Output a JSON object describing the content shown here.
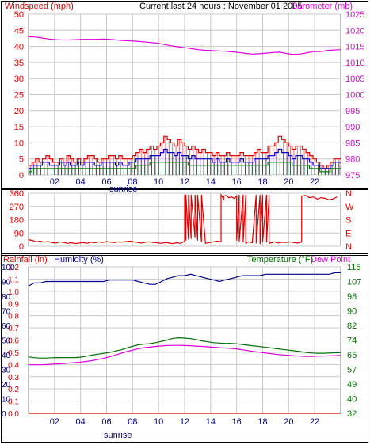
{
  "header": {
    "left_label": "Windspeed (mph)",
    "center_label": "Current last 24 hours : November 01 2005",
    "right_label": "Barometer (mb)"
  },
  "colors": {
    "wind": "#e00000",
    "wind_avg": "#0000c8",
    "wind_low": "#008000",
    "barometer": "#e000e0",
    "direction": "#e00000",
    "rain": "#e00000",
    "humidity": "#00008b",
    "temperature": "#007000",
    "dewpoint": "#e000e0",
    "grid": "#c8c8c8",
    "frame": "#000000"
  },
  "sunrise_label": "sunrise",
  "chart_data": [
    {
      "id": "wind-baro",
      "type": "bar",
      "title": "",
      "x_ticks": [
        "02",
        "04",
        "06",
        "08",
        "10",
        "12",
        "14",
        "16",
        "18",
        "20",
        "22"
      ],
      "xlim": [
        0,
        24
      ],
      "left_axis": {
        "label": "Windspeed (mph)",
        "ticks": [
          "0",
          "5",
          "10",
          "15",
          "20",
          "25",
          "30",
          "35",
          "40",
          "45",
          "50"
        ],
        "ylim": [
          0,
          50
        ]
      },
      "right_axis": {
        "label": "Barometer (mb)",
        "ticks": [
          "975",
          "980",
          "985",
          "990",
          "995",
          "1000",
          "1005",
          "1010",
          "1015",
          "1020",
          "1025"
        ],
        "ylim": [
          975,
          1025
        ]
      },
      "series": [
        {
          "name": "Gust",
          "type": "bar",
          "values": [
            3,
            4,
            5,
            4,
            5,
            6,
            5,
            4,
            4,
            5,
            4,
            6,
            5,
            4,
            5,
            4,
            5,
            6,
            6,
            5,
            4,
            5,
            5,
            6,
            6,
            5,
            6,
            5,
            5,
            5,
            6,
            7,
            8,
            7,
            8,
            9,
            8,
            9,
            10,
            12,
            11,
            10,
            9,
            11,
            10,
            9,
            8,
            9,
            8,
            7,
            8,
            7,
            7,
            6,
            7,
            6,
            6,
            7,
            6,
            6,
            6,
            7,
            6,
            6,
            6,
            7,
            8,
            7,
            7,
            9,
            9,
            10,
            12,
            11,
            10,
            9,
            8,
            9,
            9,
            8,
            7,
            6,
            5,
            4,
            3,
            2,
            3,
            4,
            5,
            5
          ]
        },
        {
          "name": "Average",
          "type": "bar",
          "values": [
            2,
            3,
            3,
            3,
            4,
            4,
            3,
            3,
            3,
            4,
            3,
            4,
            3,
            3,
            4,
            3,
            4,
            4,
            4,
            3,
            3,
            4,
            4,
            4,
            4,
            3,
            4,
            3,
            3,
            4,
            4,
            5,
            5,
            5,
            5,
            6,
            6,
            6,
            7,
            8,
            7,
            7,
            6,
            7,
            6,
            6,
            5,
            6,
            5,
            5,
            5,
            5,
            5,
            4,
            5,
            4,
            4,
            5,
            4,
            4,
            4,
            5,
            4,
            4,
            4,
            5,
            5,
            5,
            5,
            6,
            6,
            7,
            8,
            7,
            7,
            6,
            5,
            6,
            6,
            5,
            5,
            4,
            3,
            3,
            2,
            2,
            2,
            3,
            4,
            4
          ]
        },
        {
          "name": "Low",
          "type": "bar",
          "values": [
            1,
            2,
            2,
            2,
            2,
            2,
            2,
            2,
            2,
            2,
            2,
            2,
            2,
            2,
            2,
            2,
            2,
            2,
            2,
            2,
            2,
            2,
            2,
            2,
            2,
            2,
            2,
            2,
            2,
            2,
            2,
            3,
            3,
            3,
            3,
            4,
            4,
            4,
            4,
            4,
            4,
            4,
            4,
            4,
            4,
            4,
            3,
            3,
            3,
            3,
            3,
            3,
            3,
            3,
            3,
            3,
            3,
            3,
            3,
            3,
            3,
            3,
            3,
            3,
            3,
            3,
            3,
            3,
            3,
            4,
            4,
            4,
            4,
            4,
            4,
            4,
            3,
            3,
            3,
            3,
            3,
            2,
            2,
            2,
            1,
            1,
            1,
            2,
            2,
            2
          ]
        },
        {
          "name": "Barometer",
          "type": "line",
          "values": [
            1018.0,
            1017.9,
            1017.6,
            1017.3,
            1017.1,
            1017.0,
            1017.0,
            1017.1,
            1017.2,
            1017.2,
            1017.2,
            1017.3,
            1017.2,
            1017.0,
            1016.8,
            1016.7,
            1016.6,
            1016.4,
            1016.2,
            1016.0,
            1015.6,
            1015.2,
            1014.9,
            1014.6,
            1014.3,
            1014.0,
            1013.8,
            1013.7,
            1013.6,
            1013.5,
            1013.3,
            1013.1,
            1012.8,
            1012.6,
            1012.7,
            1012.9,
            1013.1,
            1013.2,
            1012.8,
            1012.5,
            1012.6,
            1013.0,
            1013.4,
            1013.4,
            1013.7,
            1013.9,
            1014.0
          ]
        }
      ]
    },
    {
      "id": "direction",
      "type": "line",
      "title": "",
      "x_ticks": [],
      "xlim": [
        0,
        24
      ],
      "left_axis": {
        "label": "",
        "ticks": [
          "0",
          "90",
          "180",
          "270",
          "360"
        ],
        "ylim": [
          0,
          360
        ]
      },
      "right_axis": {
        "label": "",
        "ticks": [
          "N",
          "E",
          "S",
          "W",
          "N"
        ]
      },
      "series": [
        {
          "name": "Direction",
          "type": "line",
          "x": [
            0.0,
            0.3,
            0.6,
            0.9,
            1.2,
            1.5,
            1.8,
            2.1,
            2.4,
            2.7,
            3.0,
            3.3,
            3.6,
            3.9,
            4.2,
            4.5,
            4.8,
            5.1,
            5.4,
            5.7,
            6.0,
            6.3,
            6.6,
            6.9,
            7.2,
            7.5,
            7.8,
            8.1,
            8.4,
            8.7,
            9.0,
            9.3,
            9.6,
            9.9,
            10.2,
            10.5,
            10.8,
            11.1,
            11.4,
            11.7,
            12.0,
            12.0,
            12.1,
            12.1,
            12.3,
            12.3,
            12.5,
            12.5,
            12.8,
            12.8,
            13.0,
            13.0,
            13.3,
            13.3,
            13.6,
            13.9,
            14.2,
            14.5,
            14.8,
            14.8,
            15.0,
            15.0,
            15.2,
            15.4,
            15.6,
            15.8,
            16.0,
            16.0,
            16.2,
            16.2,
            16.5,
            16.5,
            16.7,
            16.7,
            16.9,
            17.2,
            17.5,
            17.5,
            17.8,
            17.8,
            18.0,
            18.0,
            18.3,
            18.3,
            18.5,
            18.5,
            18.7,
            18.9,
            19.2,
            19.5,
            19.8,
            20.1,
            20.4,
            20.7,
            21.0,
            21.0,
            21.3,
            21.6,
            21.9,
            22.2,
            22.5,
            22.8,
            23.1,
            23.4,
            23.7
          ],
          "values": [
            45,
            40,
            30,
            35,
            28,
            32,
            25,
            22,
            30,
            26,
            20,
            24,
            18,
            22,
            25,
            20,
            28,
            24,
            30,
            26,
            32,
            28,
            25,
            30,
            28,
            32,
            35,
            30,
            26,
            22,
            28,
            30,
            26,
            24,
            20,
            25,
            22,
            18,
            24,
            20,
            35,
            350,
            40,
            350,
            45,
            350,
            50,
            350,
            60,
            350,
            40,
            350,
            30,
            350,
            20,
            25,
            30,
            35,
            30,
            350,
            320,
            340,
            345,
            330,
            335,
            325,
            340,
            40,
            350,
            30,
            350,
            25,
            350,
            20,
            30,
            25,
            350,
            20,
            350,
            15,
            350,
            30,
            350,
            25,
            350,
            20,
            25,
            30,
            22,
            28,
            26,
            30,
            25,
            22,
            28,
            340,
            345,
            330,
            335,
            320,
            330,
            325,
            315,
            320,
            335
          ]
        }
      ]
    },
    {
      "id": "temp-hum",
      "type": "line",
      "title": "",
      "x_ticks": [
        "02",
        "04",
        "06",
        "08",
        "10",
        "12",
        "14",
        "16",
        "18",
        "20",
        "22"
      ],
      "xlim": [
        0,
        24
      ],
      "left_axis": {
        "label": "Rainfall (in)",
        "ticks": [
          "0.0",
          "0.1",
          "0.2",
          "0.3",
          "0.4",
          "0.5",
          "0.6",
          "0.7",
          "0.8",
          "0.9",
          "1.0",
          "1.1",
          "1.2"
        ],
        "ylim": [
          0,
          1.2
        ]
      },
      "humidity_axis": {
        "label": "Humidity (%)",
        "ticks": [
          "0",
          "10",
          "20",
          "30",
          "40",
          "50",
          "60",
          "70",
          "80",
          "90",
          "100"
        ],
        "ylim": [
          0,
          100
        ]
      },
      "right_axis": {
        "label": "Temperature (°F)",
        "ticks": [
          "32",
          "40",
          "49",
          "57",
          "65",
          "74",
          "82",
          "90",
          "98",
          "107",
          "115"
        ],
        "ylim": [
          32,
          115
        ]
      },
      "dew_label": "Dew Point",
      "series": [
        {
          "name": "Rainfall",
          "type": "line",
          "values": [
            0.0,
            0.0,
            0.0,
            0.0,
            0.0,
            0.0,
            0.0,
            0.0,
            0.0,
            0.0,
            0.0,
            0.0,
            0.0,
            0.0,
            0.0,
            0.0,
            0.0,
            0.0,
            0.0,
            0.0,
            0.0,
            0.0,
            0.0,
            0.0,
            0.0
          ]
        },
        {
          "name": "Humidity",
          "type": "line",
          "values": [
            87,
            89,
            89,
            90,
            90,
            90,
            90,
            90,
            90,
            90,
            90,
            90,
            90,
            90,
            91,
            91,
            91,
            91,
            91,
            90,
            89,
            88,
            88,
            90,
            92,
            93,
            94,
            94,
            95,
            94,
            93,
            92,
            91,
            90,
            91,
            92,
            93,
            94,
            94,
            94,
            94,
            95,
            95,
            95,
            95,
            95,
            95,
            95,
            95,
            95,
            95,
            95,
            95,
            96,
            96
          ]
        },
        {
          "name": "Temperature",
          "type": "line",
          "values": [
            64.0,
            63.5,
            63.3,
            63.3,
            63.5,
            63.6,
            63.6,
            63.6,
            63.6,
            63.8,
            64.4,
            65.0,
            65.5,
            66.0,
            66.5,
            67.2,
            68.0,
            69.0,
            70.0,
            70.8,
            71.2,
            71.5,
            72.0,
            72.8,
            73.5,
            74.5,
            74.8,
            74.6,
            74.3,
            73.8,
            73.0,
            72.5,
            72.0,
            71.8,
            71.6,
            71.6,
            71.4,
            71.0,
            70.6,
            70.2,
            69.8,
            69.4,
            69.0,
            68.6,
            68.2,
            67.8,
            67.4,
            67.0,
            66.5,
            66.2,
            66.0,
            66.0,
            66.2,
            66.3,
            66.4
          ]
        },
        {
          "name": "Dew Point",
          "type": "line",
          "values": [
            59.5,
            59.5,
            59.5,
            59.6,
            59.8,
            60.0,
            60.2,
            60.5,
            60.7,
            61.0,
            61.4,
            61.9,
            62.5,
            63.2,
            64.0,
            65.0,
            66.0,
            67.0,
            67.8,
            68.6,
            69.2,
            69.5,
            69.9,
            70.2,
            70.4,
            70.5,
            70.5,
            70.4,
            70.3,
            70.1,
            69.9,
            69.7,
            69.4,
            69.2,
            69.0,
            68.8,
            68.5,
            68.0,
            67.5,
            67.0,
            66.6,
            66.2,
            65.8,
            65.4,
            65.1,
            64.8,
            64.6,
            64.4,
            64.2,
            64.2,
            64.4,
            64.5,
            64.6,
            64.7,
            64.8
          ]
        }
      ]
    }
  ]
}
